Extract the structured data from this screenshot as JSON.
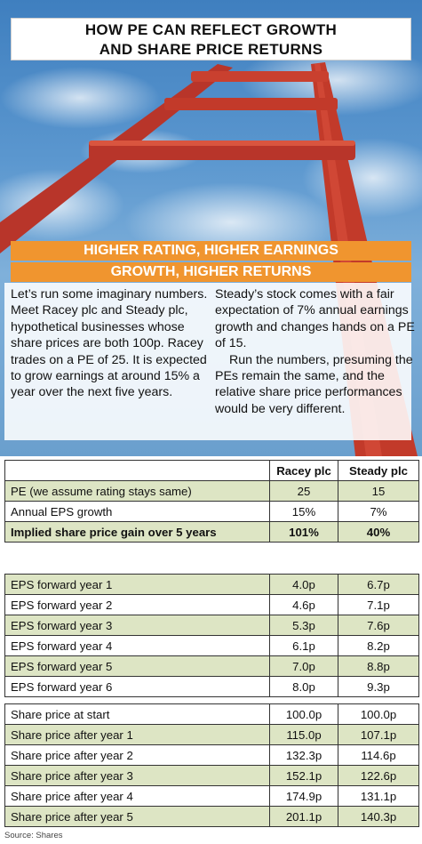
{
  "title": {
    "line1": "HOW PE CAN REFLECT GROWTH",
    "line2": "AND SHARE PRICE RETURNS"
  },
  "subtitle": {
    "line1": "HIGHER RATING, HIGHER EARNINGS",
    "line2": "GROWTH, HIGHER RETURNS"
  },
  "body": {
    "left": "Let’s run some imaginary numbers. Meet Racey plc and Steady plc, hypothetical businesses whose share prices are both 100p. Racey trades on a PE of 25. It is expected to grow earnings at around 15% a year over the next five years.",
    "right_p1": "Steady’s stock comes with a fair expectation of 7% annual earnings growth and changes hands on a PE of 15.",
    "right_p2": "Run the numbers, presuming the PEs remain the same, and the relative share price performances would be very different."
  },
  "table": {
    "columns": [
      "",
      "Racey plc",
      "Steady plc"
    ],
    "section1": [
      {
        "label": "PE (we assume rating stays same)",
        "racey": "25",
        "steady": "15"
      },
      {
        "label": "Annual EPS growth",
        "racey": "15%",
        "steady": "7%"
      },
      {
        "label": "Implied share price gain over 5 years",
        "racey": "101%",
        "steady": "40%"
      }
    ],
    "section2": [
      {
        "label": "EPS forward year 1",
        "racey": "4.0p",
        "steady": "6.7p"
      },
      {
        "label": "EPS forward year 2",
        "racey": "4.6p",
        "steady": "7.1p"
      },
      {
        "label": "EPS forward year 3",
        "racey": "5.3p",
        "steady": "7.6p"
      },
      {
        "label": "EPS forward year 4",
        "racey": "6.1p",
        "steady": "8.2p"
      },
      {
        "label": "EPS forward year 5",
        "racey": "7.0p",
        "steady": "8.8p"
      },
      {
        "label": "EPS forward year 6",
        "racey": "8.0p",
        "steady": "9.3p"
      }
    ],
    "section3": [
      {
        "label": "Share price at start",
        "racey": "100.0p",
        "steady": "100.0p"
      },
      {
        "label": "Share price after year 1",
        "racey": "115.0p",
        "steady": "107.1p"
      },
      {
        "label": "Share price after year 2",
        "racey": "132.3p",
        "steady": "114.6p"
      },
      {
        "label": "Share price after year 3",
        "racey": "152.1p",
        "steady": "122.6p"
      },
      {
        "label": "Share price after year 4",
        "racey": "174.9p",
        "steady": "131.1p"
      },
      {
        "label": "Share price after year 5",
        "racey": "201.1p",
        "steady": "140.3p"
      }
    ]
  },
  "source": "Source: Shares",
  "colors": {
    "orange": "#f0952f",
    "row_green": "#dde5c4",
    "ladder": "#c23a2a"
  }
}
